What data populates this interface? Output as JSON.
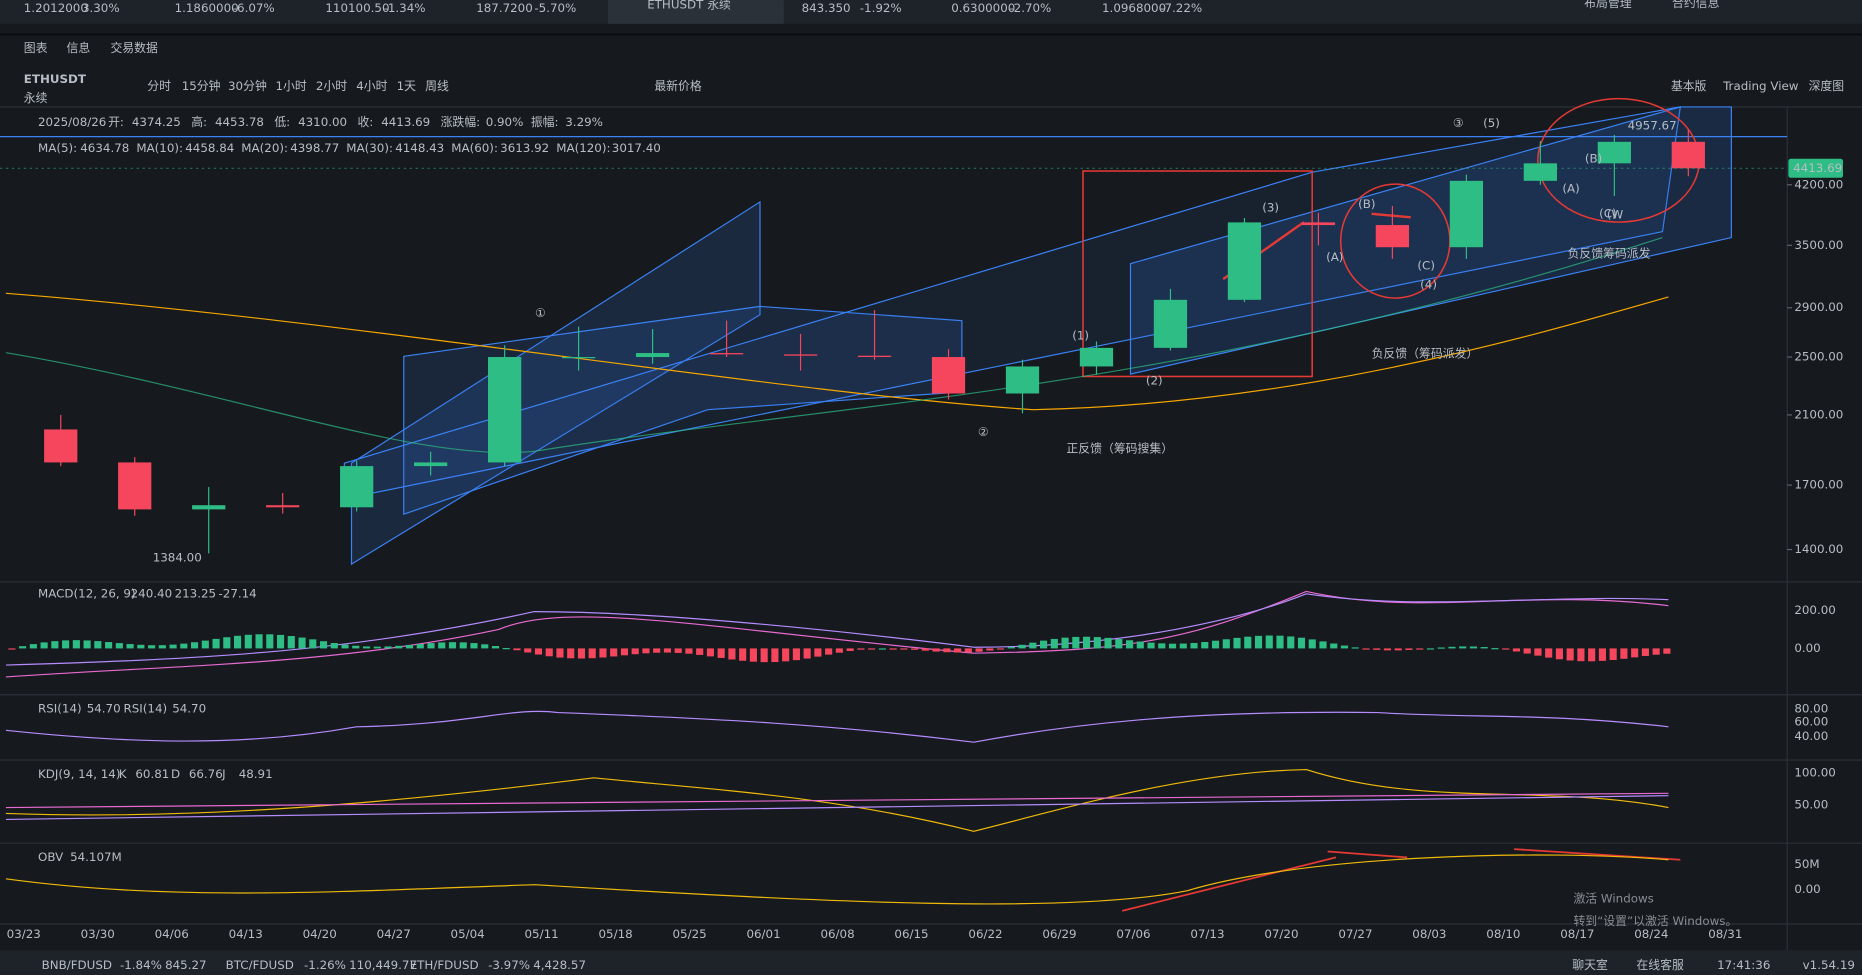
{
  "ticker_bar": [
    {
      "price": "1.2012000",
      "change": "3.30%"
    },
    {
      "price": "1.1860000",
      "change": "-6.07%"
    },
    {
      "price": "110100.50",
      "change": "-1.34%"
    },
    {
      "price": "187.7200",
      "change": "-5.70%"
    },
    {
      "symbol": "ETHUSDT 永续"
    },
    {
      "price": "843.350",
      "change": "-1.92%"
    },
    {
      "price": "0.6300000",
      "change": "-2.70%"
    },
    {
      "price": "1.0968000",
      "change": "-7.22%"
    }
  ],
  "top_links": [
    "布局管理",
    "合约信息"
  ],
  "tabs": [
    "图表",
    "信息",
    "交易数据"
  ],
  "symbol": "ETHUSDT",
  "contract": "永续",
  "intervals": [
    "分时",
    "15分钟",
    "30分钟",
    "1小时",
    "2小时",
    "4小时",
    "1天",
    "周线"
  ],
  "price_type": "最新价格",
  "views": [
    "基本版",
    "Trading View",
    "深度图"
  ],
  "ohlc_line": {
    "date": "2025/08/26",
    "items": [
      {
        "label": "开:",
        "value": "4374.25"
      },
      {
        "label": "高:",
        "value": "4453.78"
      },
      {
        "label": "低:",
        "value": "4310.00"
      },
      {
        "label": "收:",
        "value": "4413.69"
      },
      {
        "label": "涨跌幅:",
        "value": "0.90%"
      },
      {
        "label": "振幅:",
        "value": "3.29%"
      }
    ]
  },
  "ma_line": [
    {
      "name": "MA(5):",
      "value": "4634.78",
      "color": "#f0b90b"
    },
    {
      "name": "MA(10):",
      "value": "4458.84",
      "color": "#e86ad1"
    },
    {
      "name": "MA(20):",
      "value": "4398.77",
      "color": "#b58cff"
    },
    {
      "name": "MA(30):",
      "value": "4148.43",
      "color": "#f6465d"
    },
    {
      "name": "MA(60):",
      "value": "3613.92",
      "color": "#2ebd85"
    },
    {
      "name": "MA(120):",
      "value": "3017.40",
      "color": "#f7a600"
    }
  ],
  "chart_data": {
    "type": "candlestick",
    "categories": [
      "03/23",
      "03/30",
      "04/06",
      "04/13",
      "04/20",
      "04/27",
      "05/04",
      "05/11",
      "05/18",
      "05/25",
      "06/01",
      "06/08",
      "06/15",
      "06/22",
      "06/29",
      "07/06",
      "07/13",
      "07/20",
      "07/27",
      "08/03",
      "08/10",
      "08/17",
      "08/24"
    ],
    "open": [
      2010,
      1820,
      1580,
      1600,
      1590,
      1800,
      1820,
      2500,
      2500,
      2530,
      2520,
      2510,
      2500,
      2240,
      2430,
      2570,
      2970,
      3750,
      3720,
      3480,
      4250,
      4480,
      4780
    ],
    "high": [
      2100,
      1850,
      1690,
      1660,
      1830,
      1880,
      2590,
      2740,
      2720,
      2790,
      2680,
      2880,
      2560,
      2480,
      2620,
      3070,
      3800,
      3860,
      3940,
      4330,
      4790,
      4880,
      4957.67
    ],
    "low": [
      1800,
      1550,
      1384,
      1560,
      1570,
      1750,
      1800,
      2400,
      2450,
      2500,
      2400,
      2480,
      2200,
      2110,
      2370,
      2550,
      2950,
      3500,
      3360,
      3360,
      4200,
      4060,
      4310
    ],
    "close": [
      1820,
      1580,
      1600,
      1590,
      1800,
      1820,
      2500,
      2500,
      2530,
      2520,
      2510,
      2500,
      2240,
      2430,
      2570,
      2970,
      3750,
      3720,
      3480,
      4250,
      4480,
      4780,
      4413.69
    ],
    "x_extra_ticks": [
      "08/31"
    ],
    "ylim": [
      1270,
      5310
    ],
    "log": true,
    "yticks": [
      {
        "value": 1400,
        "label": "1400.00"
      },
      {
        "value": 1700,
        "label": "1700.00"
      },
      {
        "value": 2100,
        "label": "2100.00"
      },
      {
        "value": 2500,
        "label": "2500.00"
      },
      {
        "value": 2900,
        "label": "2900.00"
      },
      {
        "value": 3500,
        "label": "3500.00"
      },
      {
        "value": 4200,
        "label": "4200.00"
      }
    ],
    "last_price": {
      "value": 4413.69,
      "label": "4413.69"
    },
    "high_label": {
      "value": 4957.67,
      "label": "4957.67"
    },
    "low_label": {
      "value": 1384,
      "label": "1384.00"
    },
    "up_color": "#2ebd85",
    "down_color": "#f6465d"
  },
  "annotations": {
    "waves": [
      "①",
      "②",
      "③",
      "(5)",
      "(1)",
      "(2)",
      "(3)",
      "(4)",
      "(A)",
      "(B)",
      "(C)",
      "(A)",
      "(B)",
      "(C)",
      "(W"
    ],
    "texts": [
      "正反馈（筹码搜集）",
      "负反馈（筹码派发）",
      "负反馈筹码派发"
    ]
  },
  "indicators": {
    "macd": {
      "label": "MACD(12, 26, 9)",
      "values": [
        "240.40",
        "213.25",
        "-27.14"
      ],
      "ticks": [
        "200.00",
        "0.00"
      ]
    },
    "rsi": {
      "labels": [
        "RSI(14)",
        "54.70",
        "RSI(14)",
        "54.70"
      ],
      "ticks": [
        "80.00",
        "60.00",
        "40.00"
      ]
    },
    "kdj": {
      "label": "KDJ(9, 14, 14)",
      "items": [
        "K",
        "60.81",
        "D",
        "66.76",
        "J",
        "48.91"
      ],
      "ticks": [
        "100.00",
        "50.00"
      ]
    },
    "obv": {
      "label": "OBV",
      "value": "54.107M",
      "ticks": [
        "50M",
        "0.00"
      ]
    }
  },
  "watermark": [
    "激活 Windows",
    "转到“设置”以激活 Windows。"
  ],
  "bottom_bar": {
    "pairs": [
      {
        "name": "BNB/FDUSD",
        "change": "-1.84%",
        "price": "845.27"
      },
      {
        "name": "BTC/FDUSD",
        "change": "-1.26%",
        "price": "110,449.77"
      },
      {
        "name": "ETH/FDUSD",
        "change": "-3.97%",
        "price": "4,428.57"
      }
    ],
    "links": [
      "聊天室",
      "在线客服"
    ],
    "time": "17:41:36",
    "version": "v1.54.19"
  }
}
